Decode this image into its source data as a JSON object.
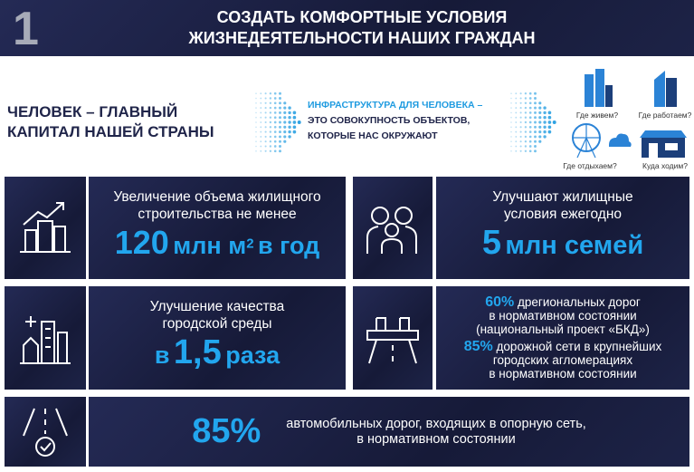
{
  "header": {
    "number": "1",
    "title_lines": [
      "СОЗДАТЬ КОМФОРТНЫЕ УСЛОВИЯ",
      "ЖИЗНЕДЕЯТЕЛЬНОСТИ НАШИХ ГРАЖДАН"
    ]
  },
  "intro": {
    "slogan_lines": [
      "ЧЕЛОВЕК – ГЛАВНЫЙ",
      "КАПИТАЛ НАШЕЙ СТРАНЫ"
    ],
    "definition": {
      "highlight": "ИНФРАСТРУКТУРА ДЛЯ ЧЕЛОВЕКА –",
      "lines": [
        "ЭТО СОВОКУПНОСТЬ ОБЪЕКТОВ,",
        "КОТОРЫЕ НАС ОКРУЖАЮТ"
      ]
    },
    "questions": [
      "Где живем?",
      "Где работаем?",
      "Где отдыхаем?",
      "Куда ходим?"
    ]
  },
  "cards": [
    {
      "lines": [
        "Увеличение объема жилищного",
        "строительства не менее"
      ],
      "figure": {
        "number": "120",
        "unit": "млн м",
        "superscript": "2",
        "suffix": "в год"
      }
    },
    {
      "lines": [
        "Улучшают жилищные",
        "условия ежегодно"
      ],
      "figure": {
        "number": "5",
        "unit": "млн семей"
      }
    },
    {
      "lines": [
        "Улучшение качества",
        "городской среды"
      ],
      "figure": {
        "prefix": "в",
        "number": "1,5",
        "unit": "раза"
      }
    },
    {
      "items": [
        {
          "percent": "60%",
          "lines": [
            "дрегиональных дорог",
            "в нормативном состоянии",
            "(национальный проект «БКД»)"
          ]
        },
        {
          "percent": "85%",
          "lines": [
            "дорожной сети в крупнейших",
            "городских агломерациях",
            "в нормативном состоянии"
          ]
        }
      ]
    },
    {
      "percent": "85%",
      "lines": [
        "автомобильных дорог, входящих в опорную сеть,",
        "в нормативном состоянии"
      ]
    }
  ]
}
